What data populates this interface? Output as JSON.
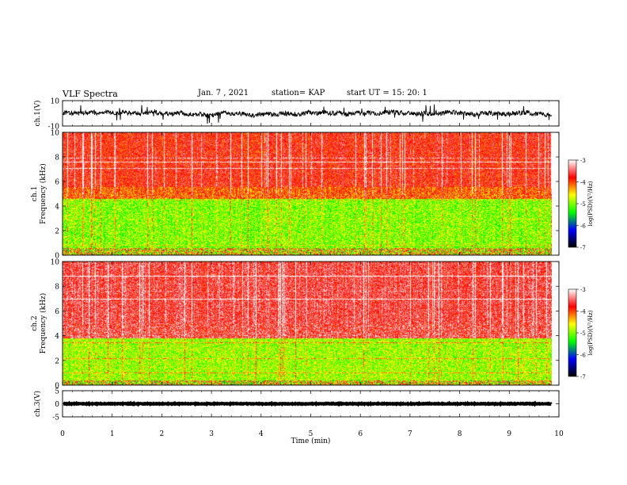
{
  "header": {
    "title": "VLF Spectra",
    "date": "Jan. 7 , 2021",
    "station": "station= KAP",
    "start_ut": "start UT =   15: 20: 1"
  },
  "chart_data": [
    {
      "type": "line",
      "name": "ch1-waveform",
      "ylabel": "ch.1(V)",
      "ylim": [
        -10,
        10
      ],
      "yticklabels": [
        "10",
        "-10"
      ],
      "xlim": [
        0,
        9.85
      ],
      "x_end_min": 9.85,
      "baseline": 0,
      "noise_amp": 3.5
    },
    {
      "type": "heatmap",
      "name": "ch1-spectrogram",
      "ylabel": "ch.1\nFrequency (kHz)",
      "ylim": [
        0,
        10
      ],
      "yticks": [
        0,
        2,
        4,
        6,
        8,
        10
      ],
      "xlim": [
        0,
        9.85
      ],
      "description_bands": [
        {
          "from_khz": 0,
          "to_khz": 0.6,
          "level": "mixed"
        },
        {
          "from_khz": 0.6,
          "to_khz": 4.6,
          "level": -5.0
        },
        {
          "from_khz": 4.6,
          "to_khz": 5.6,
          "level": -4.1
        },
        {
          "from_khz": 5.6,
          "to_khz": 10,
          "level": -3.8
        }
      ],
      "colorbar": {
        "label": "log(PSD)(V²/Hz)",
        "min": -7,
        "max": -3,
        "ticks": [
          -3,
          -4,
          -5,
          -6,
          -7
        ],
        "colors": [
          "#ffffff",
          "#ff0000",
          "#ffff00",
          "#00ff00",
          "#0000ff",
          "#000000"
        ]
      }
    },
    {
      "type": "heatmap",
      "name": "ch2-spectrogram",
      "ylabel": "ch.2\nFrequency (kHz)",
      "ylim": [
        0,
        10
      ],
      "yticks": [
        0,
        2,
        4,
        6,
        8,
        10
      ],
      "xlim": [
        0,
        9.85
      ],
      "description_bands": [
        {
          "from_khz": 0,
          "to_khz": 0.4,
          "level": "mixed"
        },
        {
          "from_khz": 0.4,
          "to_khz": 3.8,
          "level": -4.9
        },
        {
          "from_khz": 3.8,
          "to_khz": 10,
          "level": -3.6
        }
      ],
      "colorbar": {
        "label": "log(PSD)(V²/Hz)",
        "min": -7,
        "max": -3,
        "ticks": [
          -3,
          -4,
          -5,
          -6,
          -7
        ],
        "colors": [
          "#ffffff",
          "#ff0000",
          "#ffff00",
          "#00ff00",
          "#0000ff",
          "#000000"
        ]
      }
    },
    {
      "type": "line",
      "name": "ch3-waveform",
      "ylabel": "ch.3(V)",
      "ylim": [
        -5,
        5
      ],
      "yticklabels": [
        "5",
        "0",
        "-5"
      ],
      "xlim": [
        0,
        9.85
      ],
      "x_end_min": 9.85,
      "baseline": 0,
      "noise_amp": 0.25
    }
  ],
  "x_axis": {
    "label": "Time (min)",
    "ticks": [
      0,
      1,
      2,
      3,
      4,
      5,
      6,
      7,
      8,
      9,
      10
    ],
    "range": [
      0,
      10
    ]
  }
}
